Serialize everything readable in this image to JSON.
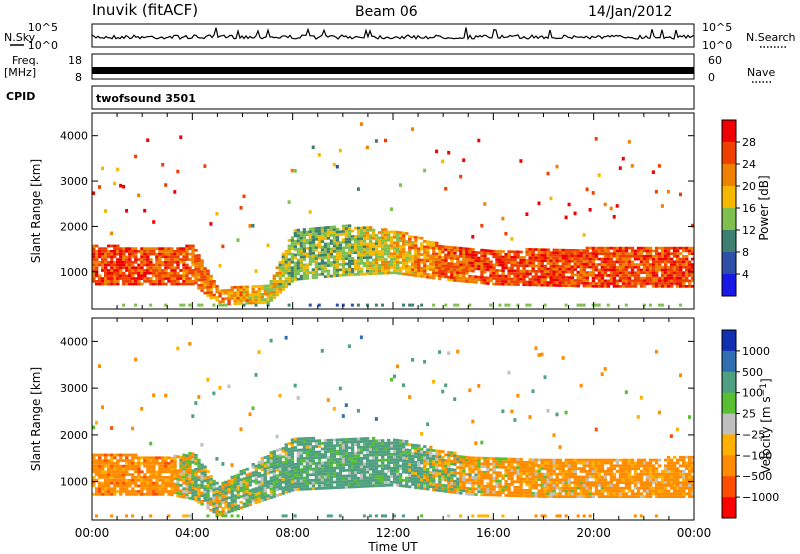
{
  "header": {
    "station": "Inuvik (fitACF)",
    "beam": "Beam 06",
    "date": "14/Jan/2012"
  },
  "strip_labels": {
    "nsky": "N.Sky",
    "nsearch": "N.Search",
    "freq_line1": "Freq.",
    "freq_line2": "[MHz]",
    "nave": "Nave",
    "cpid": "CPID",
    "cpid_value": "twofsound 3501"
  },
  "strip_ticks": {
    "nsky_left": [
      "10^5",
      "10^0"
    ],
    "nsearch_right": [
      "10^5",
      "10^0"
    ],
    "freq_left": [
      "18",
      "8"
    ],
    "nave_right": [
      "60",
      "0"
    ]
  },
  "colors": {
    "power": [
      "#1818e6",
      "#2e4fa8",
      "#3e8070",
      "#7fbf50",
      "#f5b800",
      "#f08000",
      "#f04000",
      "#f00000"
    ],
    "velocity": [
      "#ff0000",
      "#ff4d00",
      "#ff8c00",
      "#ffb000",
      "#c0c0c0",
      "#58c030",
      "#4fa080",
      "#3070b0",
      "#1030b0"
    ],
    "ground_scatter": "#b4b4b4"
  },
  "chart_data": [
    {
      "type": "heatmap",
      "name_hint": "power",
      "ylabel": "Slant Range [km]",
      "xlabel": "Time UT",
      "x_ticks": [
        "00:00",
        "04:00",
        "08:00",
        "12:00",
        "16:00",
        "20:00",
        "00:00"
      ],
      "y_ticks": [
        1000,
        2000,
        3000,
        4000
      ],
      "xlim_hours": [
        0,
        24
      ],
      "ylim_km": [
        180,
        4500
      ],
      "colorbar": {
        "label": "Power [dB]",
        "ticks": [
          "4",
          "8",
          "12",
          "16",
          "20",
          "24",
          "28"
        ]
      },
      "echo_band_km": [
        {
          "t": 0,
          "lo": 700,
          "hi": 1600,
          "v": 28
        },
        {
          "t": 2,
          "lo": 700,
          "hi": 1500,
          "v": 28
        },
        {
          "t": 4,
          "lo": 700,
          "hi": 1550,
          "v": 26
        },
        {
          "t": 5,
          "lo": 250,
          "hi": 600,
          "v": 24
        },
        {
          "t": 7,
          "lo": 300,
          "hi": 700,
          "v": 20
        },
        {
          "t": 8,
          "lo": 800,
          "hi": 1900,
          "v": 16
        },
        {
          "t": 10,
          "lo": 900,
          "hi": 2000,
          "v": 16
        },
        {
          "t": 12,
          "lo": 950,
          "hi": 1900,
          "v": 20
        },
        {
          "t": 14,
          "lo": 800,
          "hi": 1550,
          "v": 26
        },
        {
          "t": 16,
          "lo": 700,
          "hi": 1450,
          "v": 28
        },
        {
          "t": 20,
          "lo": 650,
          "hi": 1500,
          "v": 28
        },
        {
          "t": 24,
          "lo": 650,
          "hi": 1500,
          "v": 28
        }
      ]
    },
    {
      "type": "heatmap",
      "name_hint": "velocity",
      "ylabel": "Slant Range [km]",
      "xlabel": "Time UT",
      "x_ticks": [
        "00:00",
        "04:00",
        "08:00",
        "12:00",
        "16:00",
        "20:00",
        "00:00"
      ],
      "y_ticks": [
        1000,
        2000,
        3000,
        4000
      ],
      "xlim_hours": [
        0,
        24
      ],
      "ylim_km": [
        180,
        4500
      ],
      "colorbar": {
        "label": "Velocity [m s^-1]",
        "ticks": [
          "1000",
          "500",
          "100",
          "25",
          "−25",
          "−100",
          "−500",
          "−1000"
        ]
      },
      "echo_band_km": [
        {
          "t": 0,
          "lo": 700,
          "hi": 1600,
          "v": -300
        },
        {
          "t": 3,
          "lo": 700,
          "hi": 1500,
          "v": -300
        },
        {
          "t": 4,
          "lo": 600,
          "hi": 1600,
          "v": 50
        },
        {
          "t": 5,
          "lo": 250,
          "hi": 900,
          "v": 60
        },
        {
          "t": 8,
          "lo": 800,
          "hi": 1900,
          "v": 200
        },
        {
          "t": 12,
          "lo": 900,
          "hi": 1900,
          "v": 250
        },
        {
          "t": 15,
          "lo": 700,
          "hi": 1500,
          "v": -120
        },
        {
          "t": 18,
          "lo": 650,
          "hi": 1450,
          "v": -200
        },
        {
          "t": 24,
          "lo": 650,
          "hi": 1500,
          "v": -250
        }
      ]
    }
  ]
}
